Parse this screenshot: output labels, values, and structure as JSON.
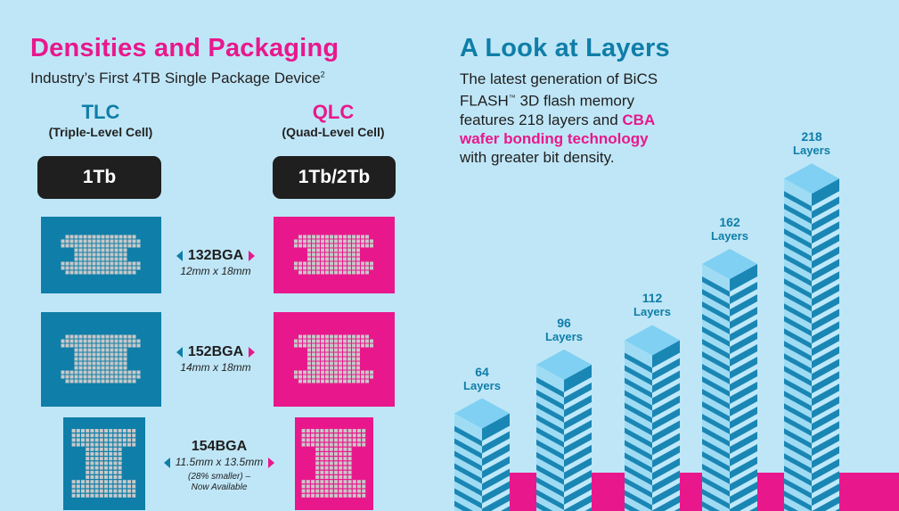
{
  "left_section": {
    "title": "Densities and Packaging",
    "subtitle": "Industry’s First 4TB Single Package Device",
    "subtitle_sup": "2",
    "tlc": {
      "name": "TLC",
      "full": "(Triple-Level Cell)",
      "density": "1Tb",
      "color": "#0f7ea8"
    },
    "qlc": {
      "name": "QLC",
      "full": "(Quad-Level Cell)",
      "density": "1Tb/2Tb",
      "color": "#e8188c"
    },
    "packages": [
      {
        "name": "132BGA",
        "dims": "12mm x 18mm",
        "note_1": "",
        "note_2": ""
      },
      {
        "name": "152BGA",
        "dims": "14mm x 18mm",
        "note_1": "",
        "note_2": ""
      },
      {
        "name": "154BGA",
        "dims": "11.5mm x 13.5mm",
        "note_1": "(28% smaller) –",
        "note_2": "Now Available"
      }
    ]
  },
  "right_section": {
    "title": "A Look at Layers",
    "desc_1": "The latest generation of BiCS",
    "desc_2a": "FLASH",
    "desc_2_tm": "™",
    "desc_2b": " 3D flash memory",
    "desc_3a": "features 218 layers and ",
    "desc_3_hl": "CBA",
    "desc_4_hl": "wafer bonding technology",
    "desc_5": "with greater bit density.",
    "towers": [
      {
        "layers": 64,
        "label_num": "64",
        "label_txt": "Layers"
      },
      {
        "layers": 96,
        "label_num": "96",
        "label_txt": "Layers"
      },
      {
        "layers": 112,
        "label_num": "112",
        "label_txt": "Layers"
      },
      {
        "layers": 162,
        "label_num": "162",
        "label_txt": "Layers"
      },
      {
        "layers": 218,
        "label_num": "218",
        "label_txt": "Layers"
      }
    ]
  },
  "colors": {
    "background": "#bfe6f7",
    "teal": "#0f7ea8",
    "magenta": "#e8188c",
    "chip_gray": "#c9c9c9"
  }
}
